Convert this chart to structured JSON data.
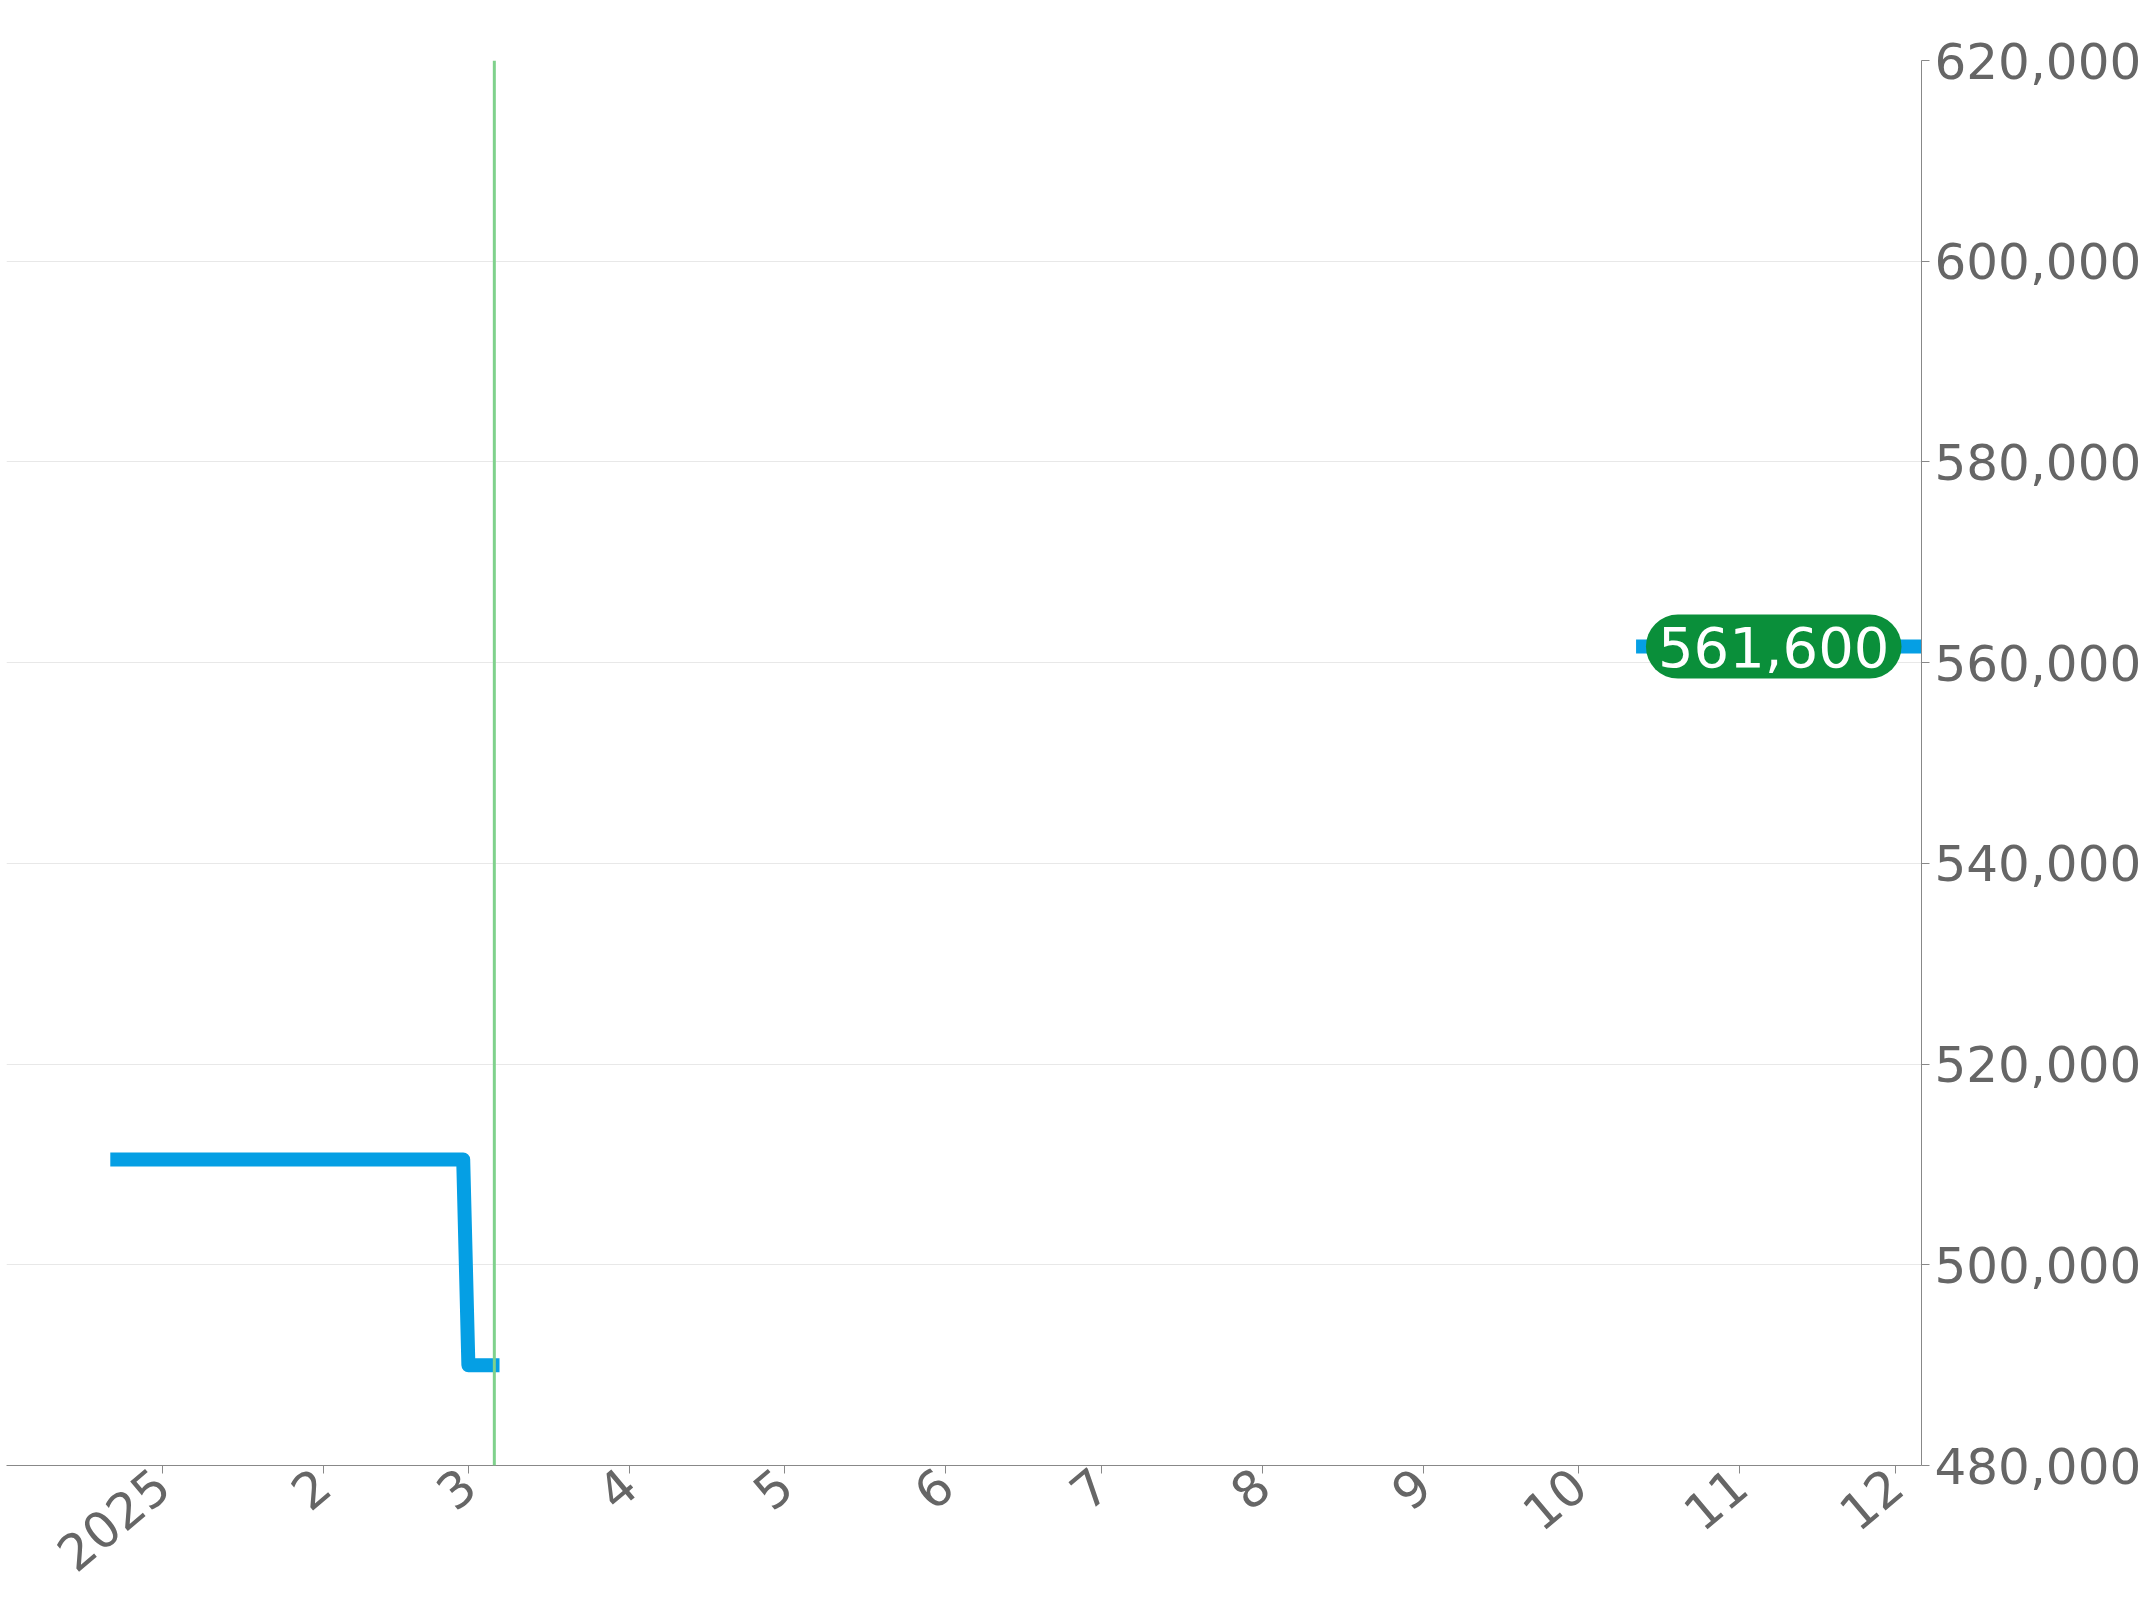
{
  "chart_data": {
    "type": "line",
    "x": [
      "2024-12-22",
      "2025-02-28",
      "2025-03-01",
      "2025-03-07",
      null,
      "2025-10-12",
      "2025-12-06"
    ],
    "series": [
      {
        "color": "#059fe4",
        "values": [
          510500,
          510500,
          490000,
          490000,
          null,
          561600,
          561600
        ]
      }
    ],
    "xlim": [
      "2024-12-02",
      "2025-12-06"
    ],
    "xticks": [
      {
        "value": "2025-01-01",
        "label": "2025"
      },
      {
        "value": "2025-02-01",
        "label": "2"
      },
      {
        "value": "2025-03-01",
        "label": "3"
      },
      {
        "value": "2025-04-01",
        "label": "4"
      },
      {
        "value": "2025-05-01",
        "label": "5"
      },
      {
        "value": "2025-06-01",
        "label": "6"
      },
      {
        "value": "2025-07-01",
        "label": "7"
      },
      {
        "value": "2025-08-01",
        "label": "8"
      },
      {
        "value": "2025-09-01",
        "label": "9"
      },
      {
        "value": "2025-10-01",
        "label": "10"
      },
      {
        "value": "2025-11-01",
        "label": "11"
      },
      {
        "value": "2025-12-01",
        "label": "12"
      }
    ],
    "ylim": [
      480000,
      620000
    ],
    "yticks": [
      {
        "value": 480000,
        "label": "480,000"
      },
      {
        "value": 500000,
        "label": "500,000"
      },
      {
        "value": 520000,
        "label": "520,000"
      },
      {
        "value": 540000,
        "label": "540,000"
      },
      {
        "value": 560000,
        "label": "560,000"
      },
      {
        "value": 580000,
        "label": "580,000"
      },
      {
        "value": 600000,
        "label": "600,000"
      },
      {
        "value": 620000,
        "label": "620,000"
      }
    ],
    "ref_lines": [
      {
        "axis": "x",
        "value": "2025-03-06",
        "color": "#7fd18c"
      }
    ],
    "annotations": [
      {
        "text": "561,600",
        "x": "2025-12-06",
        "y": 561600
      }
    ],
    "grid": "y",
    "marker": "none",
    "line_style": "solid"
  }
}
